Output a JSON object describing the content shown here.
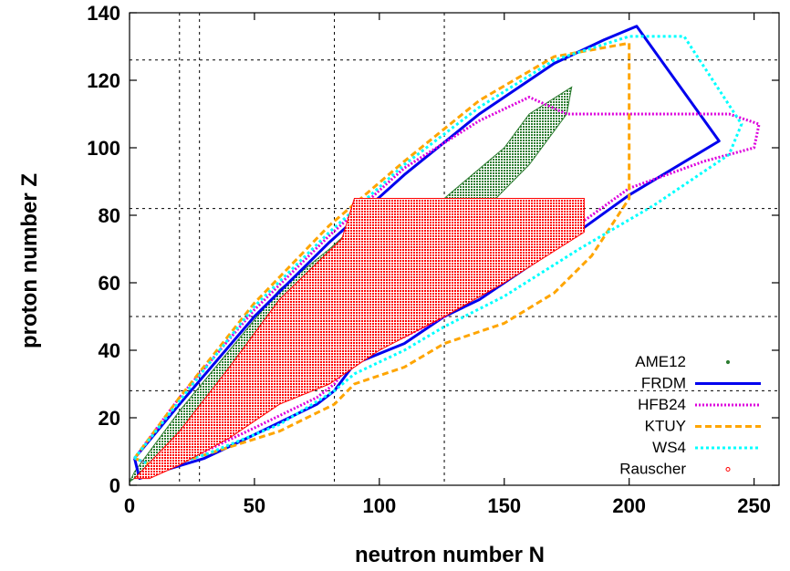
{
  "chart_data": {
    "type": "line",
    "title": "",
    "xlabel": "neutron number  N",
    "ylabel": "proton number  Z",
    "xlim": [
      0,
      260
    ],
    "ylim": [
      0,
      140
    ],
    "x_ticks": [
      0,
      50,
      100,
      150,
      200,
      250
    ],
    "y_ticks": [
      0,
      20,
      40,
      60,
      80,
      100,
      120,
      140
    ],
    "grid": "dashed lines at magic numbers",
    "magic_numbers": {
      "neutron": [
        20,
        28,
        82,
        126
      ],
      "proton": [
        28,
        50,
        82,
        126
      ]
    },
    "legend_position": "bottom-right",
    "series": [
      {
        "name": "AME12",
        "style": "filled region (points)",
        "color": "#2e7d32",
        "x": [
          0,
          20,
          40,
          60,
          80,
          100,
          120,
          140,
          160,
          175,
          177,
          160,
          150,
          126,
          110,
          95,
          80,
          60,
          40,
          20,
          10,
          2
        ],
        "y": [
          1,
          12,
          24,
          37,
          50,
          60,
          70,
          80,
          95,
          110,
          118,
          110,
          100,
          85,
          82,
          80,
          70,
          58,
          40,
          22,
          12,
          4
        ]
      },
      {
        "name": "FRDM",
        "style": "solid line",
        "color": "#0000ee",
        "x": [
          2,
          20,
          50,
          80,
          110,
          140,
          170,
          190,
          203,
          236,
          236,
          200,
          170,
          140,
          126,
          110,
          90,
          82,
          75,
          50,
          30,
          12,
          4,
          2
        ],
        "y": [
          8,
          24,
          50,
          72,
          92,
          110,
          125,
          132,
          136,
          102,
          102,
          86,
          70,
          55,
          50,
          42,
          36,
          28,
          24,
          15,
          8,
          4,
          2,
          8
        ]
      },
      {
        "name": "HFB24",
        "style": "dotted line",
        "color": "#dd00dd",
        "x": [
          2,
          20,
          50,
          80,
          110,
          140,
          160,
          175,
          240,
          252,
          250,
          230,
          200,
          170,
          140,
          126,
          110,
          90,
          82,
          75,
          50,
          30,
          12,
          2
        ],
        "y": [
          8,
          26,
          52,
          74,
          94,
          108,
          115,
          110,
          110,
          107,
          100,
          96,
          88,
          72,
          58,
          50,
          44,
          38,
          30,
          26,
          17,
          10,
          5,
          8
        ]
      },
      {
        "name": "KTUY",
        "style": "dashed line",
        "color": "#ffa500",
        "x": [
          2,
          20,
          50,
          80,
          110,
          140,
          170,
          200,
          200,
          200,
          185,
          170,
          150,
          126,
          110,
          90,
          82,
          60,
          30,
          12,
          2
        ],
        "y": [
          8,
          26,
          54,
          77,
          96,
          114,
          127,
          131,
          110,
          85,
          68,
          57,
          48,
          42,
          35,
          30,
          24,
          16,
          9,
          5,
          8
        ]
      },
      {
        "name": "WS4",
        "style": "dash-dot line",
        "color": "#00ffff",
        "x": [
          2,
          20,
          50,
          80,
          110,
          140,
          170,
          200,
          222,
          245,
          240,
          210,
          180,
          150,
          126,
          110,
          90,
          82,
          60,
          30,
          12,
          2
        ],
        "y": [
          8,
          25,
          53,
          75,
          95,
          112,
          126,
          133,
          133,
          107,
          98,
          83,
          70,
          56,
          47,
          40,
          33,
          28,
          18,
          9,
          5,
          8
        ]
      },
      {
        "name": "Rauscher",
        "style": "filled region (points)",
        "color": "#ff0000",
        "x": [
          2,
          20,
          40,
          60,
          85,
          90,
          125,
          145,
          182,
          182,
          150,
          126,
          100,
          80,
          60,
          40,
          20,
          8,
          2
        ],
        "y": [
          2,
          16,
          35,
          55,
          73,
          85,
          85,
          85,
          85,
          75,
          60,
          50,
          40,
          30,
          24,
          14,
          6,
          2,
          2
        ]
      }
    ]
  }
}
